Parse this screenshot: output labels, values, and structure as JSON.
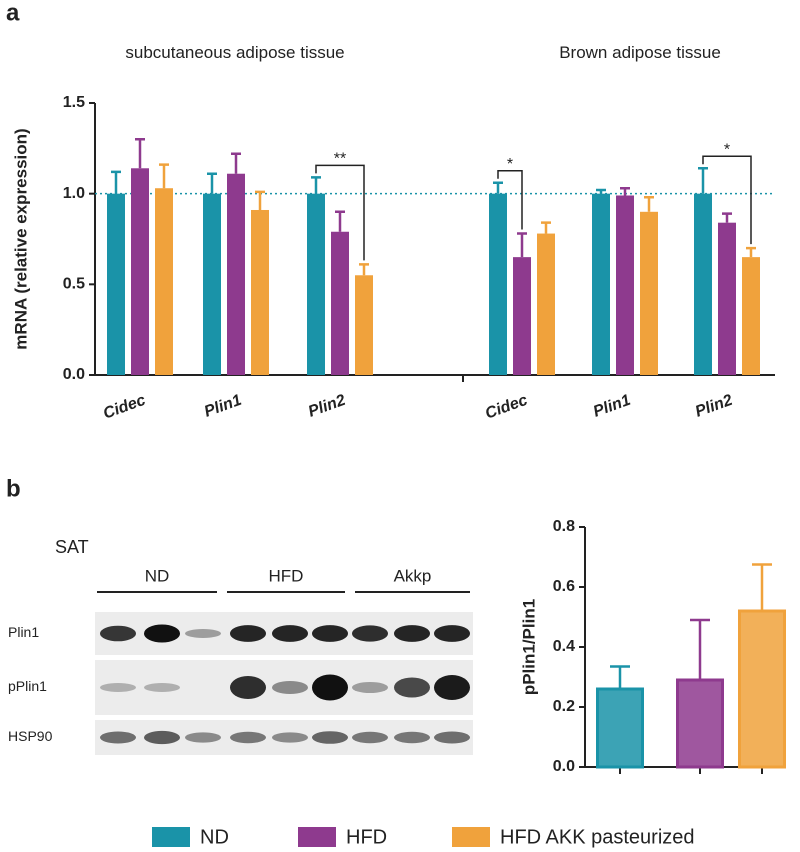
{
  "panel_labels": [
    "a",
    "b"
  ],
  "chart_data": [
    {
      "type": "bar",
      "y_label": "mRNA (relative expression)",
      "group_titles": [
        "subcutaneous adipose tissue",
        "Brown adipose tissue"
      ],
      "categories": [
        "Cidec",
        "Plin1",
        "Plin2",
        "Cidec",
        "Plin1",
        "Plin2"
      ],
      "series": [
        {
          "name": "ND",
          "color": "#1a93a8",
          "values": [
            1,
            1,
            1,
            1,
            1,
            1
          ],
          "errors": [
            0.12,
            0.11,
            0.09,
            0.06,
            0.02,
            0.14
          ]
        },
        {
          "name": "HFD",
          "color": "#8e3a8e",
          "values": [
            1.14,
            1.11,
            0.79,
            0.65,
            0.99,
            0.84
          ],
          "errors": [
            0.16,
            0.11,
            0.11,
            0.13,
            0.04,
            0.05
          ]
        },
        {
          "name": "HFD AKK pasteurized",
          "color": "#f0a23c",
          "values": [
            1.03,
            0.91,
            0.55,
            0.78,
            0.9,
            0.65
          ],
          "errors": [
            0.13,
            0.1,
            0.06,
            0.06,
            0.08,
            0.05
          ]
        }
      ],
      "reference_line": 1,
      "annotations": [
        {
          "label": "**",
          "category": 2,
          "series": [
            0,
            2
          ]
        },
        {
          "label": "*",
          "category": 3,
          "series": [
            0,
            1
          ]
        },
        {
          "label": "*",
          "category": 5,
          "series": [
            0,
            2
          ]
        }
      ],
      "ylim": [
        0,
        1.5
      ],
      "yticks": [
        {
          "value": 0,
          "label": "0.0"
        },
        {
          "value": 0.5,
          "label": "0.5"
        },
        {
          "value": 1,
          "label": "1.0"
        },
        {
          "value": 1.5,
          "label": "1.5"
        }
      ]
    },
    {
      "type": "bar",
      "y_label": "pPlin1/Plin1",
      "categories": [
        null,
        null,
        null
      ],
      "colors": [
        "#1a93a8",
        "#8e3a8e",
        "#f0a23c"
      ],
      "values": [
        0.26,
        0.29,
        0.52
      ],
      "errors": [
        0.075,
        0.2,
        0.155
      ],
      "ylim": [
        0,
        0.8
      ],
      "yticks": [
        {
          "value": 0,
          "label": "0.0"
        },
        {
          "value": 0.2,
          "label": "0.2"
        },
        {
          "value": 0.4,
          "label": "0.4"
        },
        {
          "value": 0.6,
          "label": "0.6"
        },
        {
          "value": 0.8,
          "label": "0.8"
        }
      ]
    }
  ],
  "blot": {
    "title": "SAT",
    "groups": [
      "ND",
      "HFD",
      "Akkp"
    ],
    "rows": [
      "Plin1",
      "pPlin1",
      "HSP90"
    ]
  }
}
